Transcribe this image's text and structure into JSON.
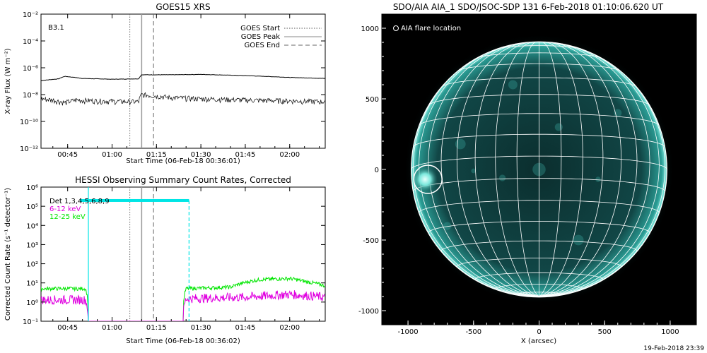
{
  "goes_panel": {
    "title": "GOES15 XRS",
    "class_label": "B3.1",
    "ylabel": "X-ray Flux (W m⁻²)",
    "xlabel": "Start Time (06-Feb-18 00:36:01)",
    "legend": [
      "GOES Start",
      "GOES Peak",
      "GOES End"
    ]
  },
  "hessi_panel": {
    "title": "HESSI Observing Summary Count Rates, Corrected",
    "ylabel": "Corrected Count Rate (s⁻¹ detector⁻¹)",
    "xlabel": "Start Time (06-Feb-18 00:36:02)",
    "legend": [
      "Det 1,3,4,5,6,8,9",
      "6-12 keV",
      "12-25 keV"
    ]
  },
  "aia_panel": {
    "title": "SDO/AIA AIA_1 SDO/JSOC-SDP 131  6-Feb-2018 01:10:06.620 UT",
    "legend": "AIA flare location",
    "xlabel": "X (arcsec)",
    "footer": "19-Feb-2018 23:39"
  },
  "colors": {
    "det_line": "#00e5e5",
    "band_6_12": "#e000e0",
    "band_12_25": "#00e600",
    "disk": "#0d3b3b",
    "disk_rim": "#2fd6c8"
  },
  "chart_data": [
    {
      "type": "line",
      "title": "GOES15 XRS",
      "xlabel": "Start Time (06-Feb-18 00:36:01)",
      "ylabel": "X-ray Flux (W m⁻²)",
      "y_scale": "log",
      "xlim": [
        "00:36",
        "02:12"
      ],
      "ylim": [
        1e-12,
        0.01
      ],
      "x_ticks": [
        "00:45",
        "01:00",
        "01:15",
        "01:30",
        "01:45",
        "02:00"
      ],
      "y_ticks": [
        "10⁻¹²",
        "10⁻¹⁰",
        "10⁻⁸",
        "10⁻⁶",
        "10⁻⁴",
        "10⁻²"
      ],
      "annotations": [
        "B3.1"
      ],
      "markers": {
        "GOES Start": "01:06",
        "GOES Peak": "01:10",
        "GOES End": "01:14"
      },
      "series": [
        {
          "name": "long channel",
          "x": [
            "00:36",
            "00:42",
            "00:44",
            "00:50",
            "01:00",
            "01:09",
            "01:10",
            "01:20",
            "01:30",
            "01:45",
            "02:00",
            "02:12"
          ],
          "y": [
            1.1e-07,
            1.5e-07,
            2.3e-07,
            1.6e-07,
            1.4e-07,
            1.5e-07,
            3e-07,
            3e-07,
            3.2e-07,
            2.6e-07,
            1.9e-07,
            1.6e-07
          ]
        },
        {
          "name": "short channel",
          "x": [
            "00:36",
            "00:40",
            "00:44",
            "00:48",
            "00:55",
            "01:05",
            "01:09",
            "01:10",
            "01:20",
            "01:30",
            "01:45",
            "02:00",
            "02:12"
          ],
          "y": [
            5e-09,
            4e-09,
            2.5e-09,
            4e-09,
            3.5e-09,
            3e-09,
            3e-09,
            1e-08,
            6e-09,
            5e-09,
            4e-09,
            3.5e-09,
            3e-09
          ]
        }
      ]
    },
    {
      "type": "line",
      "title": "HESSI Observing Summary Count Rates, Corrected",
      "xlabel": "Start Time (06-Feb-18 00:36:02)",
      "ylabel": "Corrected Count Rate (s⁻¹ detector⁻¹)",
      "y_scale": "log",
      "xlim": [
        "00:36",
        "02:12"
      ],
      "ylim": [
        0.1,
        1000000.0
      ],
      "x_ticks": [
        "00:45",
        "01:00",
        "01:15",
        "01:30",
        "01:45",
        "02:00"
      ],
      "y_ticks": [
        "10⁻¹",
        "10⁰",
        "10¹",
        "10²",
        "10³",
        "10⁴",
        "10⁵",
        "10⁶"
      ],
      "markers": {
        "GOES Start": "01:06",
        "GOES Peak": "01:10",
        "GOES End": "01:14"
      },
      "attenuator_window": [
        "00:52",
        "01:26"
      ],
      "attenuator_level": 200000,
      "series": [
        {
          "name": "6-12 keV",
          "x": [
            "00:36",
            "00:51",
            "00:52",
            "01:24",
            "01:25",
            "01:45",
            "02:00",
            "02:12"
          ],
          "y": [
            1.3,
            1.3,
            0.1,
            0.1,
            1.5,
            1.8,
            2.5,
            1.8
          ]
        },
        {
          "name": "12-25 keV",
          "x": [
            "00:36",
            "00:51",
            "00:52",
            "01:24",
            "01:25",
            "01:40",
            "01:50",
            "02:00",
            "02:05",
            "02:12"
          ],
          "y": [
            5,
            5,
            0.1,
            0.1,
            5,
            6,
            15,
            17,
            12,
            7
          ]
        }
      ]
    },
    {
      "type": "scatter",
      "title": "SDO/AIA AIA_1 SDO/JSOC-SDP 131  6-Feb-2018 01:10:06.620 UT",
      "xlabel": "X (arcsec)",
      "xlim": [
        -1200,
        1200
      ],
      "ylim": [
        -1100,
        1100
      ],
      "x_ticks": [
        "-1000",
        "-500",
        "0",
        "500",
        "1000"
      ],
      "y_ticks": [
        "1000",
        "500",
        "0",
        "-500",
        "-1000"
      ],
      "solar_radius": 975,
      "series": [
        {
          "name": "AIA flare location",
          "x": [
            -870
          ],
          "y": [
            -70
          ]
        }
      ]
    }
  ]
}
